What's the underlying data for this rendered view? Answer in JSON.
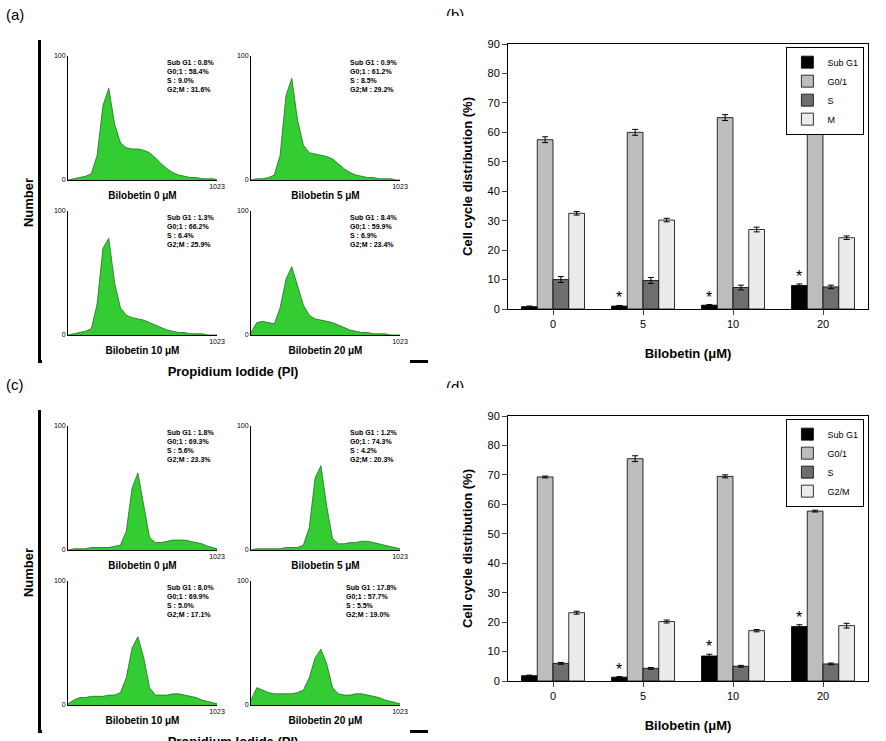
{
  "chart_data": [
    {
      "panel": "(a)",
      "type": "area",
      "color": "#33cc33",
      "ylabel": "Number",
      "xlabel": "Propidium Iodide (PI)",
      "xlim": [
        0,
        1023
      ],
      "xticks": [
        1023
      ],
      "ylim": [
        0,
        100
      ],
      "yticks": [
        0,
        100
      ],
      "subplots": [
        {
          "title": "Bilobetin 0 μM",
          "annotation": [
            "Sub G1 : 0.8%",
            "G0;1 : 58.4%",
            "S : 9.0%",
            "G2;M : 31.6%"
          ],
          "x": [
            0,
            40,
            80,
            120,
            160,
            200,
            240,
            280,
            320,
            360,
            400,
            440,
            480,
            520,
            560,
            600,
            640,
            680,
            720,
            760,
            800,
            840,
            880,
            920,
            960,
            1000,
            1023
          ],
          "values": [
            0,
            1,
            2,
            3,
            5,
            20,
            60,
            74,
            45,
            30,
            26,
            25,
            25,
            24,
            22,
            18,
            13,
            9,
            6,
            4,
            3,
            2,
            2,
            1,
            1,
            1,
            0
          ]
        },
        {
          "title": "Bilobetin 5 μM",
          "annotation": [
            "Sub G1 : 0.9%",
            "G0;1 : 61.2%",
            "S : 8.5%",
            "G2;M : 29.2%"
          ],
          "x": [
            0,
            40,
            80,
            120,
            160,
            200,
            240,
            280,
            320,
            360,
            400,
            440,
            480,
            520,
            560,
            600,
            640,
            680,
            720,
            760,
            800,
            840,
            880,
            920,
            960,
            1000,
            1023
          ],
          "values": [
            0,
            1,
            1,
            2,
            4,
            20,
            68,
            82,
            48,
            28,
            22,
            21,
            20,
            19,
            17,
            13,
            9,
            6,
            4,
            3,
            2,
            2,
            1,
            1,
            1,
            0,
            0
          ]
        },
        {
          "title": "Bilobetin 10 μM",
          "annotation": [
            "Sub G1 : 1.3%",
            "G0;1 : 66.2%",
            "S : 6.4%",
            "G2;M : 25.9%"
          ],
          "x": [
            0,
            40,
            80,
            120,
            160,
            200,
            240,
            280,
            320,
            360,
            400,
            440,
            480,
            520,
            560,
            600,
            640,
            680,
            720,
            760,
            800,
            840,
            880,
            920,
            960,
            1000,
            1023
          ],
          "values": [
            0,
            1,
            2,
            3,
            5,
            25,
            70,
            78,
            42,
            22,
            16,
            14,
            13,
            12,
            10,
            8,
            6,
            4,
            3,
            2,
            2,
            1,
            1,
            1,
            0,
            0,
            0
          ]
        },
        {
          "title": "Bilobetin 20 μM",
          "annotation": [
            "Sub G1 : 8.4%",
            "G0;1 : 59.9%",
            "S : 6.9%",
            "G2;M : 23.4%"
          ],
          "x": [
            0,
            40,
            80,
            120,
            160,
            200,
            240,
            280,
            320,
            360,
            400,
            440,
            480,
            520,
            560,
            600,
            640,
            680,
            720,
            760,
            800,
            840,
            880,
            920,
            960,
            1000,
            1023
          ],
          "values": [
            2,
            10,
            11,
            10,
            9,
            22,
            45,
            55,
            40,
            24,
            16,
            13,
            12,
            11,
            10,
            8,
            6,
            4,
            3,
            2,
            2,
            1,
            1,
            1,
            0,
            0,
            0
          ]
        }
      ]
    },
    {
      "panel": "(b)",
      "type": "bar",
      "xlabel": "Bilobetin (μM)",
      "ylabel": "Cell cycle distribution (%)",
      "categories": [
        "0",
        "5",
        "10",
        "20"
      ],
      "ylim": [
        0,
        90
      ],
      "yticks": [
        0,
        10,
        20,
        30,
        40,
        50,
        60,
        70,
        80,
        90
      ],
      "legend": "upper right",
      "series": [
        {
          "name": "Sub G1",
          "color": "#000000",
          "values": [
            0.8,
            1.0,
            1.3,
            8.0
          ],
          "errors": [
            0.2,
            0.2,
            0.2,
            0.5
          ],
          "marks": [
            null,
            "*",
            "*",
            "*"
          ]
        },
        {
          "name": "G0/1",
          "color": "#bdbdbd",
          "values": [
            57.5,
            60.0,
            65.0,
            60.3
          ],
          "errors": [
            1.0,
            1.0,
            1.0,
            0.3
          ]
        },
        {
          "name": "S",
          "color": "#6e6e6e",
          "values": [
            10.0,
            9.7,
            7.3,
            7.5
          ],
          "errors": [
            1.0,
            1.0,
            0.8,
            0.6
          ]
        },
        {
          "name": "M",
          "color": "#ebebeb",
          "values": [
            32.5,
            30.2,
            27.0,
            24.2
          ],
          "errors": [
            0.6,
            0.6,
            0.8,
            0.6
          ]
        }
      ]
    },
    {
      "panel": "(c)",
      "type": "area",
      "color": "#33cc33",
      "ylabel": "Number",
      "xlabel": "Propidium Iodide (PI)",
      "xlim": [
        0,
        1023
      ],
      "xticks": [
        1023
      ],
      "ylim": [
        0,
        100
      ],
      "yticks": [
        0,
        100
      ],
      "subplots": [
        {
          "title": "Bilobetin 0 μM",
          "annotation": [
            "Sub G1 : 1.8%",
            "G0;1 : 69.3%",
            "S : 5.6%",
            "G2;M : 23.3%"
          ],
          "x": [
            0,
            40,
            80,
            120,
            160,
            200,
            240,
            280,
            320,
            360,
            400,
            440,
            480,
            520,
            560,
            600,
            640,
            680,
            720,
            760,
            800,
            840,
            880,
            920,
            960,
            1000,
            1023
          ],
          "values": [
            0,
            1,
            1,
            1,
            2,
            2,
            2,
            2,
            3,
            4,
            15,
            50,
            62,
            35,
            10,
            6,
            6,
            7,
            8,
            8,
            8,
            7,
            6,
            5,
            3,
            2,
            1
          ]
        },
        {
          "title": "Bilobetin 5 μM",
          "annotation": [
            "Sub G1 : 1.2%",
            "G0;1 : 74.3%",
            "S : 4.2%",
            "G2;M : 20.3%"
          ],
          "x": [
            0,
            40,
            80,
            120,
            160,
            200,
            240,
            280,
            320,
            360,
            400,
            440,
            480,
            520,
            560,
            600,
            640,
            680,
            720,
            760,
            800,
            840,
            880,
            920,
            960,
            1000,
            1023
          ],
          "values": [
            0,
            1,
            1,
            1,
            1,
            1,
            2,
            2,
            2,
            4,
            18,
            58,
            68,
            35,
            9,
            5,
            5,
            6,
            6,
            7,
            7,
            6,
            5,
            4,
            3,
            2,
            1
          ]
        },
        {
          "title": "Bilobetin 10 μM",
          "annotation": [
            "Sub G1 : 8.0%",
            "G0;1 : 69.9%",
            "S : 5.0%",
            "G2;M : 17.1%"
          ],
          "x": [
            0,
            40,
            80,
            120,
            160,
            200,
            240,
            280,
            320,
            360,
            400,
            440,
            480,
            520,
            560,
            600,
            640,
            680,
            720,
            760,
            800,
            840,
            880,
            920,
            960,
            1000,
            1023
          ],
          "values": [
            1,
            4,
            6,
            6,
            7,
            7,
            7,
            8,
            8,
            10,
            22,
            46,
            55,
            38,
            14,
            8,
            8,
            8,
            9,
            9,
            8,
            7,
            6,
            4,
            3,
            2,
            1
          ]
        },
        {
          "title": "Bilobetin 20 μM",
          "annotation": [
            "Sub G1 : 17.8%",
            "G0;1 : 57.7%",
            "S : 5.5%",
            "G2;M : 19.0%"
          ],
          "x": [
            0,
            40,
            80,
            120,
            160,
            200,
            240,
            280,
            320,
            360,
            400,
            440,
            480,
            520,
            560,
            600,
            640,
            680,
            720,
            760,
            800,
            840,
            880,
            920,
            960,
            1000,
            1023
          ],
          "values": [
            4,
            14,
            12,
            10,
            9,
            9,
            9,
            9,
            10,
            12,
            22,
            38,
            45,
            33,
            14,
            9,
            8,
            8,
            9,
            9,
            8,
            7,
            6,
            4,
            3,
            2,
            1
          ]
        }
      ]
    },
    {
      "panel": "(d)",
      "type": "bar",
      "xlabel": "Bilobetin (μM)",
      "ylabel": "Cell cycle distribution (%)",
      "categories": [
        "0",
        "5",
        "10",
        "20"
      ],
      "ylim": [
        0,
        90
      ],
      "yticks": [
        0,
        10,
        20,
        30,
        40,
        50,
        60,
        70,
        80,
        90
      ],
      "legend": "upper right",
      "series": [
        {
          "name": "Sub G1",
          "color": "#000000",
          "values": [
            1.8,
            1.3,
            8.5,
            18.5
          ],
          "errors": [
            0.2,
            0.2,
            0.6,
            0.6
          ],
          "marks": [
            null,
            "*",
            "*",
            "*"
          ]
        },
        {
          "name": "G0/1",
          "color": "#bdbdbd",
          "values": [
            69.3,
            75.5,
            69.5,
            57.7
          ],
          "errors": [
            0.3,
            1.0,
            0.5,
            0.3
          ]
        },
        {
          "name": "S",
          "color": "#6e6e6e",
          "values": [
            6.0,
            4.3,
            5.0,
            5.8
          ],
          "errors": [
            0.3,
            0.3,
            0.3,
            0.3
          ]
        },
        {
          "name": "G2/M",
          "color": "#ebebeb",
          "values": [
            23.2,
            20.2,
            17.1,
            18.8
          ],
          "errors": [
            0.5,
            0.5,
            0.4,
            0.8
          ]
        }
      ]
    }
  ]
}
